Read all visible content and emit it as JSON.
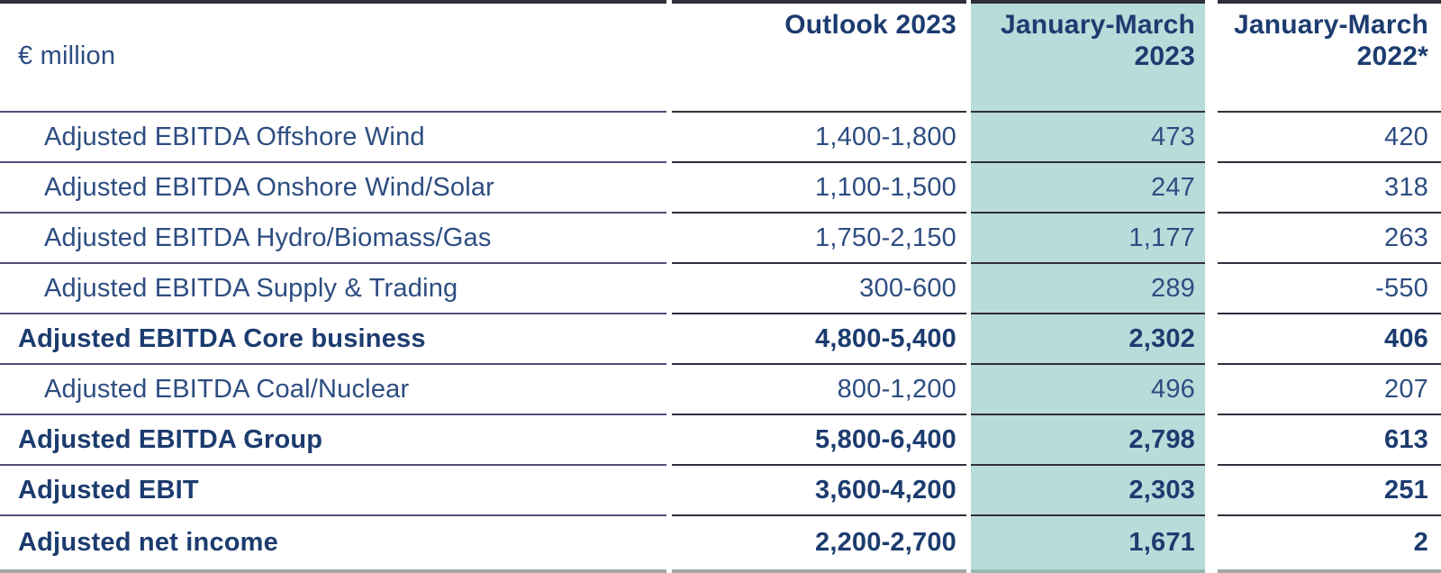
{
  "table": {
    "unit_label": "€ million",
    "columns": [
      "Outlook 2023",
      "January-March 2023",
      "January-March 2022*"
    ],
    "highlighted_column": "January-March 2023",
    "rows": [
      {
        "label": "Adjusted EBITDA Offshore Wind",
        "emphasis": false,
        "outlook_2023": "1,400-1,800",
        "jan_mar_2023": "473",
        "jan_mar_2022": "420"
      },
      {
        "label": "Adjusted EBITDA Onshore Wind/Solar",
        "emphasis": false,
        "outlook_2023": "1,100-1,500",
        "jan_mar_2023": "247",
        "jan_mar_2022": "318"
      },
      {
        "label": "Adjusted EBITDA Hydro/Biomass/Gas",
        "emphasis": false,
        "outlook_2023": "1,750-2,150",
        "jan_mar_2023": "1,177",
        "jan_mar_2022": "263"
      },
      {
        "label": "Adjusted EBITDA Supply & Trading",
        "emphasis": false,
        "outlook_2023": "300-600",
        "jan_mar_2023": "289",
        "jan_mar_2022": "-550"
      },
      {
        "label": "Adjusted EBITDA Core business",
        "emphasis": true,
        "outlook_2023": "4,800-5,400",
        "jan_mar_2023": "2,302",
        "jan_mar_2022": "406"
      },
      {
        "label": "Adjusted EBITDA Coal/Nuclear",
        "emphasis": false,
        "outlook_2023": "800-1,200",
        "jan_mar_2023": "496",
        "jan_mar_2022": "207"
      },
      {
        "label": "Adjusted EBITDA Group",
        "emphasis": true,
        "outlook_2023": "5,800-6,400",
        "jan_mar_2023": "2,798",
        "jan_mar_2022": "613"
      },
      {
        "label": "Adjusted EBIT",
        "emphasis": true,
        "outlook_2023": "3,600-4,200",
        "jan_mar_2023": "2,303",
        "jan_mar_2022": "251"
      },
      {
        "label": "Adjusted net income",
        "emphasis": true,
        "outlook_2023": "2,200-2,700",
        "jan_mar_2023": "1,671",
        "jan_mar_2022": "2"
      }
    ],
    "colors": {
      "text_regular": "#2d4d81",
      "text_emphasis": "#1c3c6f",
      "highlight_column_bg": "#b7dcda",
      "label_column_separator": "#50507a",
      "numeric_column_separator": "#2e2e3c",
      "top_border": "#2e2e3c",
      "bottom_border": "#a6a6a6",
      "bottom_border_highlight": "#95b9b7"
    }
  }
}
